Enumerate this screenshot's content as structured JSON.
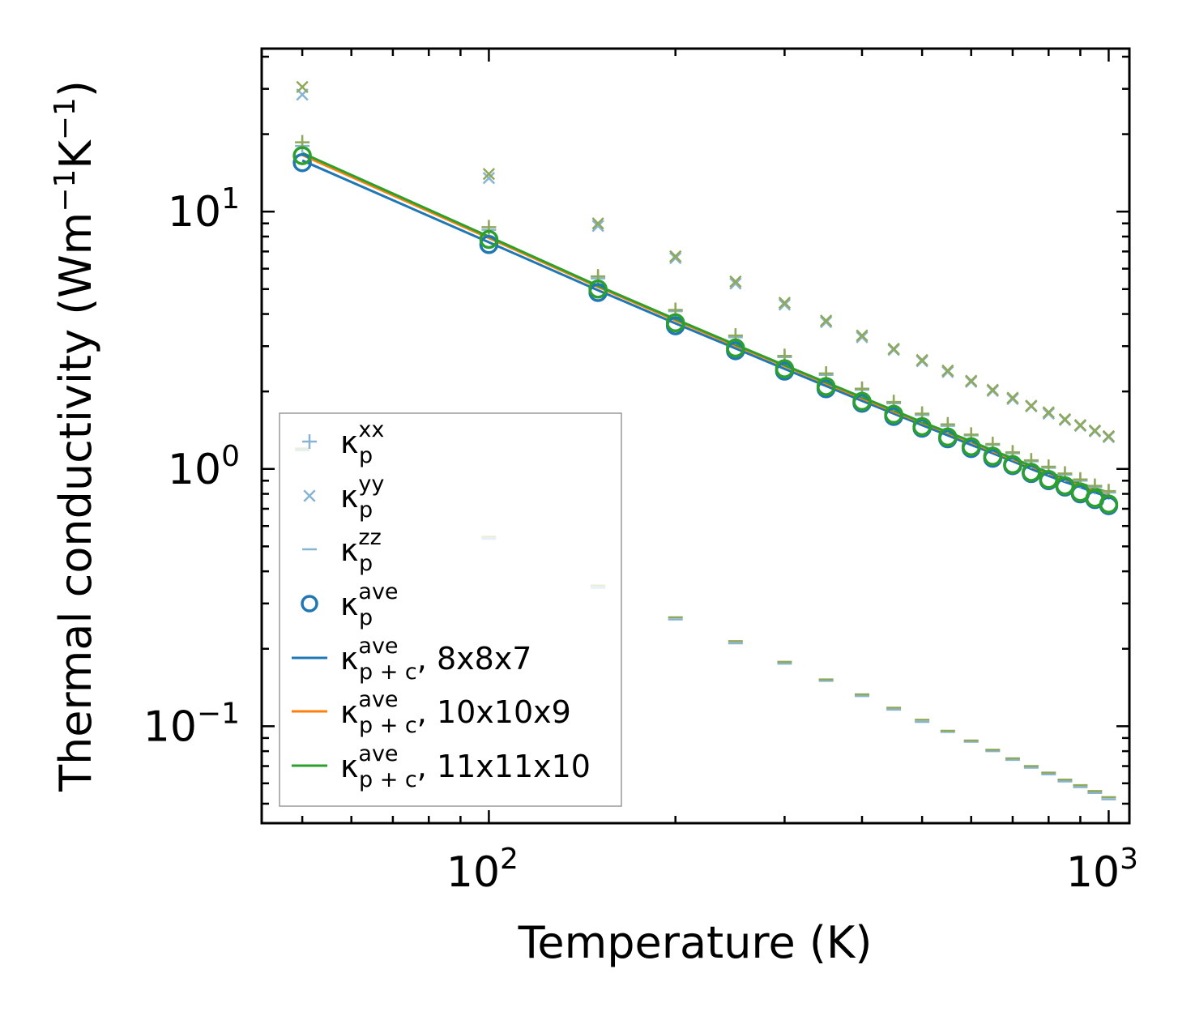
{
  "chart_data": {
    "type": "scatter",
    "title": "",
    "xlabel": "Temperature (K)",
    "ylabel": "Thermal conductivity (Wm$^{-1}$K$^{-1}$)",
    "ylabel_parts": {
      "pre": "Thermal conductivity (Wm",
      "sup1": "−1",
      "mid": "K",
      "sup2": "−1",
      "post": ")"
    },
    "x_scale": "log",
    "y_scale": "log",
    "xlim": [
      43,
      1080
    ],
    "ylim": [
      0.042,
      43
    ],
    "x_ticks": [
      {
        "value": 100,
        "base": "10",
        "exp": "2"
      },
      {
        "value": 1000,
        "base": "10",
        "exp": "3"
      }
    ],
    "y_ticks": [
      {
        "value": 0.1,
        "base": "10",
        "exp": "−1"
      },
      {
        "value": 1,
        "base": "10",
        "exp": "0"
      },
      {
        "value": 10,
        "base": "10",
        "exp": "1"
      }
    ],
    "legend_position": "lower-left",
    "temperatures": [
      50,
      100,
      150,
      200,
      250,
      300,
      350,
      400,
      450,
      500,
      550,
      600,
      650,
      700,
      750,
      800,
      850,
      900,
      950,
      1000
    ],
    "series": [
      {
        "name": "κp xx 8x8x7",
        "component": "xx",
        "grid": "8x8x7",
        "marker": "plus",
        "color": "#86b4d2",
        "values": [
          18.0,
          8.5,
          5.5,
          4.1,
          3.25,
          2.72,
          2.32,
          2.03,
          1.8,
          1.62,
          1.47,
          1.35,
          1.24,
          1.15,
          1.07,
          1.01,
          0.95,
          0.9,
          0.85,
          0.81
        ]
      },
      {
        "name": "κp xx 11x11x10",
        "component": "xx",
        "grid": "11x11x10",
        "marker": "plus",
        "color": "#8fa85a",
        "values": [
          18.6,
          8.7,
          5.6,
          4.15,
          3.3,
          2.75,
          2.35,
          2.05,
          1.82,
          1.64,
          1.49,
          1.36,
          1.25,
          1.16,
          1.08,
          1.02,
          0.96,
          0.91,
          0.86,
          0.82
        ]
      },
      {
        "name": "κp yy 8x8x7",
        "component": "yy",
        "grid": "8x8x7",
        "marker": "x",
        "color": "#86b4d2",
        "values": [
          28.5,
          13.5,
          8.8,
          6.6,
          5.25,
          4.35,
          3.72,
          3.25,
          2.9,
          2.62,
          2.38,
          2.18,
          2.01,
          1.87,
          1.75,
          1.64,
          1.55,
          1.47,
          1.4,
          1.33
        ]
      },
      {
        "name": "κp yy 11x11x10",
        "component": "yy",
        "grid": "11x11x10",
        "marker": "x",
        "color": "#8fa85a",
        "values": [
          30.5,
          14.0,
          9.0,
          6.7,
          5.35,
          4.42,
          3.77,
          3.3,
          2.93,
          2.65,
          2.41,
          2.2,
          2.03,
          1.89,
          1.76,
          1.66,
          1.56,
          1.48,
          1.41,
          1.34
        ]
      },
      {
        "name": "κp zz 8x8x7",
        "component": "zz",
        "grid": "8x8x7",
        "marker": "dash",
        "color": "#86b4d2",
        "values": [
          1.18,
          0.535,
          0.345,
          0.26,
          0.21,
          0.175,
          0.15,
          0.131,
          0.116,
          0.104,
          0.095,
          0.087,
          0.08,
          0.074,
          0.069,
          0.065,
          0.061,
          0.058,
          0.055,
          0.052
        ]
      },
      {
        "name": "κp zz 11x11x10",
        "component": "zz",
        "grid": "11x11x10",
        "marker": "dash",
        "color": "#8fa85a",
        "values": [
          1.2,
          0.545,
          0.352,
          0.265,
          0.214,
          0.178,
          0.152,
          0.133,
          0.118,
          0.106,
          0.096,
          0.088,
          0.081,
          0.075,
          0.07,
          0.066,
          0.062,
          0.059,
          0.056,
          0.053
        ]
      },
      {
        "name": "κp ave 8x8x7",
        "component": "ave",
        "grid": "8x8x7",
        "marker": "circle",
        "color": "#1f77b4",
        "values": [
          15.5,
          7.45,
          4.85,
          3.6,
          2.88,
          2.4,
          2.05,
          1.8,
          1.6,
          1.44,
          1.31,
          1.2,
          1.1,
          1.03,
          0.96,
          0.9,
          0.85,
          0.8,
          0.76,
          0.72
        ]
      },
      {
        "name": "κp ave 11x11x10",
        "component": "ave",
        "grid": "11x11x10",
        "marker": "circle",
        "color": "#2ca02c",
        "values": [
          16.5,
          7.8,
          5.0,
          3.7,
          2.95,
          2.45,
          2.09,
          1.83,
          1.63,
          1.46,
          1.33,
          1.22,
          1.12,
          1.04,
          0.97,
          0.91,
          0.86,
          0.81,
          0.77,
          0.73
        ]
      },
      {
        "name": "κp+c ave, 8x8x7",
        "component": "ave",
        "grid": "8x8x7",
        "marker": "line",
        "color": "#1f77b4",
        "values": [
          15.8,
          7.6,
          4.95,
          3.68,
          2.94,
          2.45,
          2.1,
          1.84,
          1.64,
          1.48,
          1.35,
          1.24,
          1.15,
          1.07,
          1.0,
          0.94,
          0.89,
          0.85,
          0.81,
          0.78
        ]
      },
      {
        "name": "κp+c ave, 10x10x9",
        "component": "ave",
        "grid": "10x10x9",
        "marker": "line",
        "color": "#ff7f0e",
        "values": [
          16.6,
          7.9,
          5.1,
          3.78,
          3.01,
          2.51,
          2.15,
          1.88,
          1.67,
          1.51,
          1.38,
          1.27,
          1.17,
          1.09,
          1.02,
          0.96,
          0.91,
          0.87,
          0.83,
          0.8
        ]
      },
      {
        "name": "κp+c ave, 11x11x10",
        "component": "ave",
        "grid": "11x11x10",
        "marker": "line",
        "color": "#2ca02c",
        "values": [
          16.9,
          8.0,
          5.15,
          3.82,
          3.04,
          2.53,
          2.17,
          1.9,
          1.69,
          1.52,
          1.39,
          1.28,
          1.18,
          1.1,
          1.03,
          0.97,
          0.92,
          0.88,
          0.84,
          0.81
        ]
      }
    ],
    "legend": [
      {
        "marker": "plus",
        "color": "#86b4d2",
        "base": "κ",
        "sub": "p",
        "sup": "xx",
        "suffix": ""
      },
      {
        "marker": "x",
        "color": "#86b4d2",
        "base": "κ",
        "sub": "p",
        "sup": "yy",
        "suffix": ""
      },
      {
        "marker": "dash",
        "color": "#86b4d2",
        "base": "κ",
        "sub": "p",
        "sup": "zz",
        "suffix": ""
      },
      {
        "marker": "circle",
        "color": "#1f77b4",
        "base": "κ",
        "sub": "p",
        "sup": "ave",
        "suffix": ""
      },
      {
        "marker": "line",
        "color": "#1f77b4",
        "base": "κ",
        "sub": "p + c",
        "sup": "ave",
        "suffix": ", 8x8x7"
      },
      {
        "marker": "line",
        "color": "#ff7f0e",
        "base": "κ",
        "sub": "p + c",
        "sup": "ave",
        "suffix": ", 10x10x9"
      },
      {
        "marker": "line",
        "color": "#2ca02c",
        "base": "κ",
        "sub": "p + c",
        "sup": "ave",
        "suffix": ", 11x11x10"
      }
    ]
  }
}
